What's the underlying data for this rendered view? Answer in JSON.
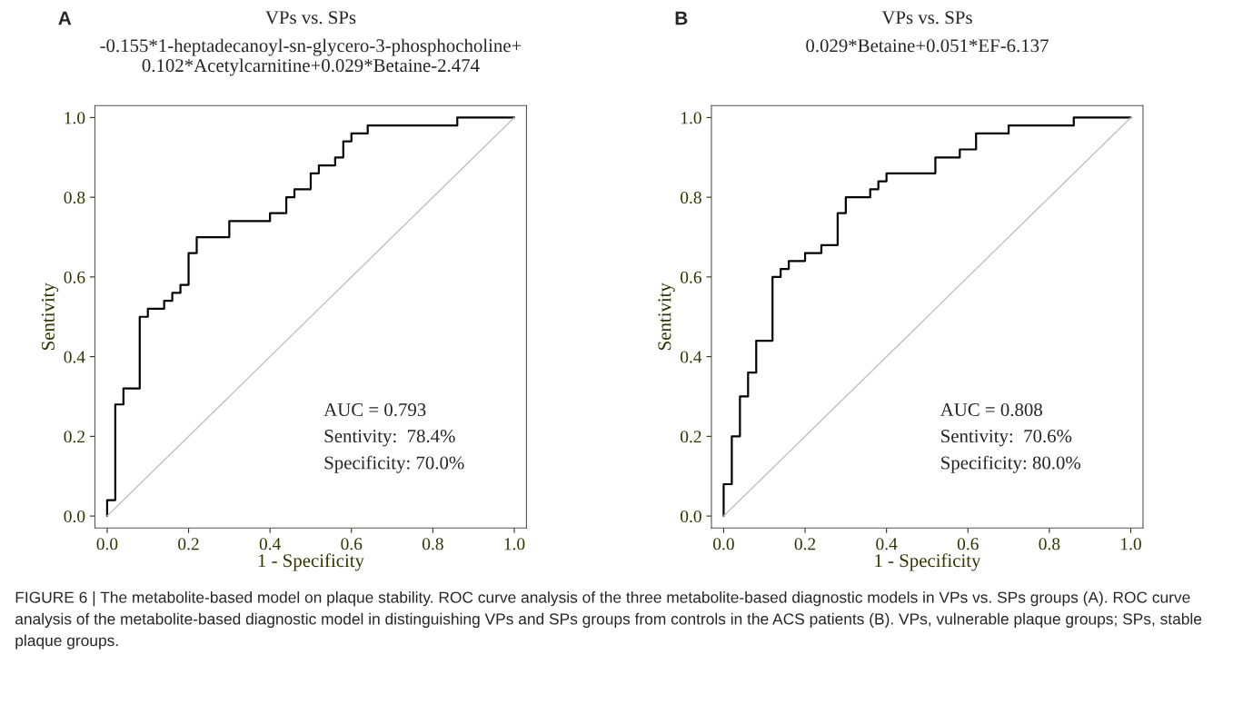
{
  "chart_data": [
    {
      "type": "line",
      "title": "VPs vs. SPs",
      "subtitle": "-0.155*1-heptadecanoyl-sn-glycero-3-phosphocholine+\n0.102*Acetylcarnitine+0.029*Betaine-2.474",
      "xlabel": "1 - Specificity",
      "ylabel": "Sentivity",
      "xlim": [
        -0.03,
        1.03
      ],
      "ylim": [
        -0.03,
        1.03
      ],
      "xticks": [
        {
          "value": 0,
          "label": "0.0"
        },
        {
          "value": 0.2,
          "label": "0.2"
        },
        {
          "value": 0.4,
          "label": "0.4"
        },
        {
          "value": 0.6,
          "label": "0.6"
        },
        {
          "value": 0.8,
          "label": "0.8"
        },
        {
          "value": 1,
          "label": "1.0"
        }
      ],
      "yticks": [
        {
          "value": 0,
          "label": "0.0"
        },
        {
          "value": 0.2,
          "label": "0.2"
        },
        {
          "value": 0.4,
          "label": "0.4"
        },
        {
          "value": 0.6,
          "label": "0.6"
        },
        {
          "value": 0.8,
          "label": "0.8"
        },
        {
          "value": 1,
          "label": "1.0"
        }
      ],
      "grid": false,
      "marker": "none",
      "series": [
        {
          "color": "#000000",
          "x": [
            0,
            0,
            0.02,
            0.02,
            0.04,
            0.04,
            0.08,
            0.08,
            0.1,
            0.1,
            0.14,
            0.14,
            0.16,
            0.16,
            0.18,
            0.18,
            0.2,
            0.2,
            0.22,
            0.22,
            0.3,
            0.3,
            0.4,
            0.4,
            0.44,
            0.44,
            0.46,
            0.46,
            0.5,
            0.5,
            0.52,
            0.52,
            0.56,
            0.56,
            0.58,
            0.58,
            0.6,
            0.6,
            0.64,
            0.64,
            0.86,
            0.86,
            1
          ],
          "values": [
            0,
            0.04,
            0.04,
            0.28,
            0.28,
            0.32,
            0.32,
            0.5,
            0.5,
            0.52,
            0.52,
            0.54,
            0.54,
            0.56,
            0.56,
            0.58,
            0.58,
            0.66,
            0.66,
            0.7,
            0.7,
            0.74,
            0.74,
            0.76,
            0.76,
            0.8,
            0.8,
            0.82,
            0.82,
            0.86,
            0.86,
            0.88,
            0.88,
            0.9,
            0.9,
            0.94,
            0.94,
            0.96,
            0.96,
            0.98,
            0.98,
            1,
            1
          ]
        },
        {
          "color": "#c0c0c0",
          "x": [
            0,
            1
          ],
          "values": [
            0,
            1
          ]
        }
      ],
      "annotations": [
        "A",
        "AUC = 0.793\nSentivity:  78.4%\nSpecificity: 70.0%"
      ]
    },
    {
      "type": "line",
      "title": "VPs vs. SPs",
      "subtitle": "0.029*Betaine+0.051*EF-6.137",
      "xlabel": "1 - Specificity",
      "ylabel": "Sentivity",
      "xlim": [
        -0.03,
        1.03
      ],
      "ylim": [
        -0.03,
        1.03
      ],
      "xticks": [
        {
          "value": 0,
          "label": "0.0"
        },
        {
          "value": 0.2,
          "label": "0.2"
        },
        {
          "value": 0.4,
          "label": "0.4"
        },
        {
          "value": 0.6,
          "label": "0.6"
        },
        {
          "value": 0.8,
          "label": "0.8"
        },
        {
          "value": 1,
          "label": "1.0"
        }
      ],
      "yticks": [
        {
          "value": 0,
          "label": "0.0"
        },
        {
          "value": 0.2,
          "label": "0.2"
        },
        {
          "value": 0.4,
          "label": "0.4"
        },
        {
          "value": 0.6,
          "label": "0.6"
        },
        {
          "value": 0.8,
          "label": "0.8"
        },
        {
          "value": 1,
          "label": "1.0"
        }
      ],
      "grid": false,
      "marker": "none",
      "series": [
        {
          "color": "#000000",
          "x": [
            0,
            0,
            0.02,
            0.02,
            0.04,
            0.04,
            0.06,
            0.06,
            0.08,
            0.08,
            0.12,
            0.12,
            0.14,
            0.14,
            0.16,
            0.16,
            0.2,
            0.2,
            0.24,
            0.24,
            0.28,
            0.28,
            0.3,
            0.3,
            0.36,
            0.36,
            0.38,
            0.38,
            0.4,
            0.4,
            0.52,
            0.52,
            0.58,
            0.58,
            0.62,
            0.62,
            0.7,
            0.7,
            0.86,
            0.86,
            1
          ],
          "values": [
            0,
            0.08,
            0.08,
            0.2,
            0.2,
            0.3,
            0.3,
            0.36,
            0.36,
            0.44,
            0.44,
            0.6,
            0.6,
            0.62,
            0.62,
            0.64,
            0.64,
            0.66,
            0.66,
            0.68,
            0.68,
            0.76,
            0.76,
            0.8,
            0.8,
            0.82,
            0.82,
            0.84,
            0.84,
            0.86,
            0.86,
            0.9,
            0.9,
            0.92,
            0.92,
            0.96,
            0.96,
            0.98,
            0.98,
            1,
            1
          ]
        },
        {
          "color": "#c0c0c0",
          "x": [
            0,
            1
          ],
          "values": [
            0,
            1
          ]
        }
      ],
      "annotations": [
        "B",
        "AUC = 0.808\nSentivity:  70.6%\nSpecificity: 80.0%",
        "FIGURE 6 | The metabolite-based model on plaque stability. ROC curve analysis of the three metabolite-based diagnostic models in VPs vs. SPs groups (A). ROC curve analysis of the metabolite-based diagnostic model in distinguishing VPs and SPs groups from controls in the ACS patients (B). VPs, vulnerable plaque groups; SPs, stable plaque groups."
      ]
    }
  ]
}
